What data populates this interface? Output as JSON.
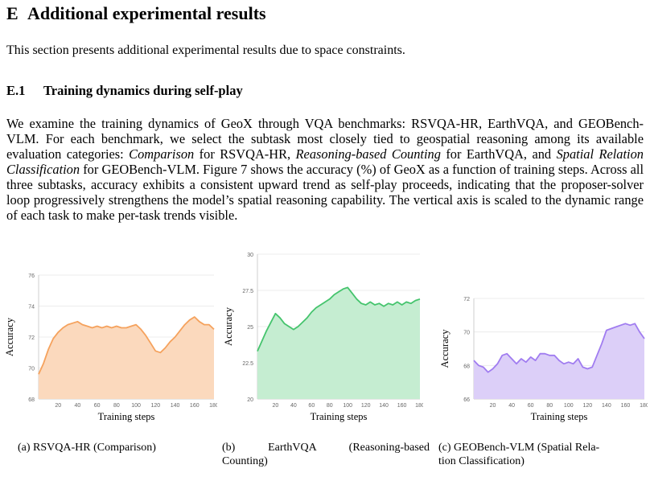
{
  "section": {
    "number": "E",
    "title": "Additional experimental results"
  },
  "intro": "This section presents additional experimental results due to space constraints.",
  "subsection": {
    "number": "E.1",
    "title": "Training dynamics during self-play"
  },
  "paragraph": {
    "p1": "We examine the training dynamics of GeoX through VQA benchmarks: RSVQA-HR, EarthVQA, and GEOBench-VLM. For each benchmark, we select the subtask most closely tied to geospatial reasoning among its available evaluation categories: ",
    "em1": "Comparison",
    "p2": " for RSVQA-HR, ",
    "em2": "Reasoning-based Counting",
    "p3": " for EarthVQA, and ",
    "em3": "Spatial Relation Classification",
    "p4": " for GEOBench-VLM. Figure 7 shows the accuracy (%) of GeoX as a function of training steps. Across all three subtasks, accuracy exhibits a consistent upward trend as self-play proceeds, indicating that the proposer-solver loop progressively strengthens the model’s spatial reasoning capability. The vertical axis is scaled to the dynamic range of each task to make per-task trends visible."
  },
  "chart_data": [
    {
      "type": "area",
      "xlabel": "Training steps",
      "ylabel": "Accuracy",
      "xlim": [
        0,
        180
      ],
      "ylim": [
        68,
        76
      ],
      "xticks": [
        20,
        40,
        60,
        80,
        100,
        120,
        140,
        160,
        180
      ],
      "yticks": [
        68,
        70,
        72,
        74,
        76
      ],
      "color": "#f5a25d",
      "fill": "#fbd9bd",
      "x": [
        0,
        5,
        10,
        15,
        20,
        25,
        30,
        35,
        40,
        45,
        50,
        55,
        60,
        65,
        70,
        75,
        80,
        85,
        90,
        95,
        100,
        105,
        110,
        115,
        120,
        125,
        130,
        135,
        140,
        145,
        150,
        155,
        160,
        165,
        170,
        175,
        180
      ],
      "values": [
        69.6,
        70.3,
        71.2,
        71.9,
        72.3,
        72.6,
        72.8,
        72.9,
        73.0,
        72.8,
        72.7,
        72.6,
        72.7,
        72.6,
        72.7,
        72.6,
        72.7,
        72.6,
        72.6,
        72.7,
        72.8,
        72.5,
        72.1,
        71.6,
        71.1,
        71.0,
        71.3,
        71.7,
        72.0,
        72.4,
        72.8,
        73.1,
        73.3,
        73.0,
        72.8,
        72.8,
        72.5
      ],
      "caption": "(a) RSVQA-HR (Comparison)"
    },
    {
      "type": "area",
      "xlabel": "Training steps",
      "ylabel": "Accuracy",
      "xlim": [
        0,
        180
      ],
      "ylim": [
        20,
        30
      ],
      "xticks": [
        20,
        40,
        60,
        80,
        100,
        120,
        140,
        160,
        180
      ],
      "yticks": [
        20,
        22.5,
        25,
        27.5,
        30
      ],
      "ytick_labels": [
        "20",
        "22.5",
        "25",
        "27.5",
        "30"
      ],
      "color": "#45c46d",
      "fill": "#c5edd1",
      "x": [
        0,
        5,
        10,
        15,
        20,
        25,
        30,
        35,
        40,
        45,
        50,
        55,
        60,
        65,
        70,
        75,
        80,
        85,
        90,
        95,
        100,
        105,
        110,
        115,
        120,
        125,
        130,
        135,
        140,
        145,
        150,
        155,
        160,
        165,
        170,
        175,
        180
      ],
      "values": [
        23.3,
        24.0,
        24.7,
        25.3,
        25.9,
        25.6,
        25.2,
        25.0,
        24.8,
        25.0,
        25.3,
        25.6,
        26.0,
        26.3,
        26.5,
        26.7,
        26.9,
        27.2,
        27.4,
        27.6,
        27.7,
        27.3,
        26.9,
        26.6,
        26.5,
        26.7,
        26.5,
        26.6,
        26.4,
        26.6,
        26.5,
        26.7,
        26.5,
        26.7,
        26.6,
        26.8,
        26.9
      ],
      "caption_a": "(b) EarthVQA (Reasoning-based",
      "caption_b": "Counting)"
    },
    {
      "type": "area",
      "xlabel": "Training steps",
      "ylabel": "Accuracy",
      "xlim": [
        0,
        180
      ],
      "ylim": [
        66,
        72
      ],
      "xticks": [
        20,
        40,
        60,
        80,
        100,
        120,
        140,
        160,
        180
      ],
      "yticks": [
        66,
        68,
        70,
        72
      ],
      "color": "#a07cf0",
      "fill": "#dccff8",
      "x": [
        0,
        5,
        10,
        15,
        20,
        25,
        30,
        35,
        40,
        45,
        50,
        55,
        60,
        65,
        70,
        75,
        80,
        85,
        90,
        95,
        100,
        105,
        110,
        115,
        120,
        125,
        130,
        135,
        140,
        145,
        150,
        155,
        160,
        165,
        170,
        175,
        180
      ],
      "values": [
        68.3,
        68.0,
        67.9,
        67.6,
        67.8,
        68.1,
        68.6,
        68.7,
        68.4,
        68.1,
        68.4,
        68.2,
        68.5,
        68.3,
        68.7,
        68.7,
        68.6,
        68.6,
        68.3,
        68.1,
        68.2,
        68.1,
        68.4,
        67.9,
        67.8,
        67.9,
        68.6,
        69.3,
        70.1,
        70.2,
        70.3,
        70.4,
        70.5,
        70.4,
        70.5,
        70.0,
        69.6
      ],
      "caption_a": "(c) GEOBench-VLM (Spatial Rela-",
      "caption_b": "tion Classification)"
    }
  ]
}
